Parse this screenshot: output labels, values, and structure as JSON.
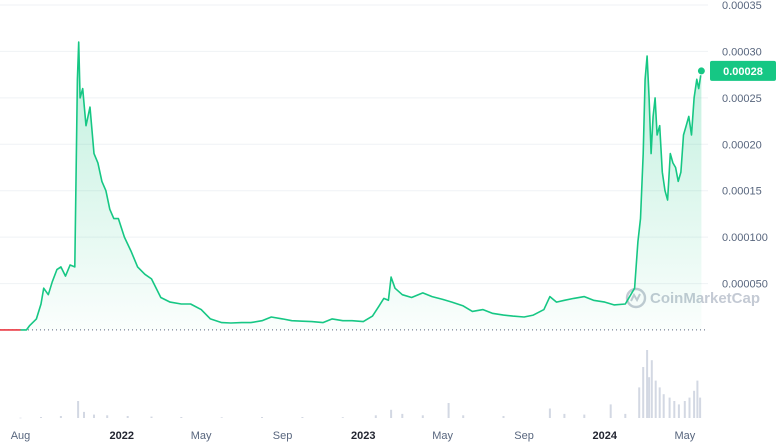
{
  "watermark": {
    "text": "CoinMarketCap",
    "icon": "coinmarketcap-logo-icon"
  },
  "current_price_label": "0.00028",
  "chart_data": {
    "type": "line",
    "title": "",
    "xlabel": "",
    "ylabel": "",
    "ylim": [
      0,
      0.00035
    ],
    "y_tick_labels": [
      "0.00035",
      "0.00030",
      "0.00025",
      "0.00020",
      "0.00015",
      "0.000100",
      "0.000050"
    ],
    "y_tick_values": [
      0.00035,
      0.0003,
      0.00025,
      0.0002,
      0.00015,
      0.0001,
      5e-05
    ],
    "x_tick_labels": [
      "Aug",
      "2022",
      "May",
      "Sep",
      "2023",
      "May",
      "Sep",
      "2024",
      "May"
    ],
    "x_tick_dates": [
      "2021-08-01",
      "2022-01-01",
      "2022-05-01",
      "2022-09-01",
      "2023-01-01",
      "2023-05-01",
      "2023-09-01",
      "2024-01-01",
      "2024-05-01"
    ],
    "x_tick_bold": [
      false,
      true,
      false,
      false,
      true,
      false,
      false,
      true,
      false
    ],
    "xlim": [
      "2021-07-01",
      "2024-06-05"
    ],
    "baseline_value": 1e-07,
    "colors": {
      "up": "#16c784",
      "down": "#ea3943",
      "volume": "#d3d8e3",
      "axis_text": "#58667e"
    },
    "series": [
      {
        "values": [
          [
            "2021-07-01",
            1e-07
          ],
          [
            "2021-07-15",
            1e-07
          ],
          [
            "2021-08-01",
            1e-07
          ],
          [
            "2021-08-10",
            1e-07
          ],
          [
            "2021-08-15",
            5e-06
          ],
          [
            "2021-08-25",
            1.2e-05
          ],
          [
            "2021-09-01",
            2.8e-05
          ],
          [
            "2021-09-05",
            4.5e-05
          ],
          [
            "2021-09-12",
            3.8e-05
          ],
          [
            "2021-09-18",
            5.2e-05
          ],
          [
            "2021-09-25",
            6.5e-05
          ],
          [
            "2021-10-01",
            6.8e-05
          ],
          [
            "2021-10-08",
            5.8e-05
          ],
          [
            "2021-10-15",
            7e-05
          ],
          [
            "2021-10-22",
            6.8e-05
          ],
          [
            "2021-10-26",
            0.00027
          ],
          [
            "2021-10-28",
            0.00031
          ],
          [
            "2021-10-30",
            0.00025
          ],
          [
            "2021-11-03",
            0.00026
          ],
          [
            "2021-11-08",
            0.00022
          ],
          [
            "2021-11-14",
            0.00024
          ],
          [
            "2021-11-20",
            0.00019
          ],
          [
            "2021-11-26",
            0.00018
          ],
          [
            "2021-12-02",
            0.00016
          ],
          [
            "2021-12-08",
            0.00015
          ],
          [
            "2021-12-14",
            0.00013
          ],
          [
            "2021-12-20",
            0.00012
          ],
          [
            "2021-12-27",
            0.00012
          ],
          [
            "2022-01-05",
            0.0001
          ],
          [
            "2022-01-15",
            8.5e-05
          ],
          [
            "2022-01-25",
            6.8e-05
          ],
          [
            "2022-02-05",
            6e-05
          ],
          [
            "2022-02-15",
            5.5e-05
          ],
          [
            "2022-03-01",
            3.5e-05
          ],
          [
            "2022-03-15",
            3e-05
          ],
          [
            "2022-04-01",
            2.8e-05
          ],
          [
            "2022-04-15",
            2.8e-05
          ],
          [
            "2022-05-01",
            2.2e-05
          ],
          [
            "2022-05-15",
            1.2e-05
          ],
          [
            "2022-06-01",
            8e-06
          ],
          [
            "2022-06-15",
            7.5e-06
          ],
          [
            "2022-07-01",
            8e-06
          ],
          [
            "2022-07-15",
            8e-06
          ],
          [
            "2022-08-01",
            1e-05
          ],
          [
            "2022-08-15",
            1.4e-05
          ],
          [
            "2022-09-01",
            1.2e-05
          ],
          [
            "2022-09-15",
            1e-05
          ],
          [
            "2022-10-01",
            9.5e-06
          ],
          [
            "2022-10-15",
            9e-06
          ],
          [
            "2022-11-01",
            8e-06
          ],
          [
            "2022-11-15",
            1.2e-05
          ],
          [
            "2022-12-01",
            1e-05
          ],
          [
            "2022-12-15",
            1e-05
          ],
          [
            "2023-01-01",
            9e-06
          ],
          [
            "2023-01-15",
            1.5e-05
          ],
          [
            "2023-01-25",
            2.6e-05
          ],
          [
            "2023-02-01",
            3.4e-05
          ],
          [
            "2023-02-08",
            3.2e-05
          ],
          [
            "2023-02-12",
            5.7e-05
          ],
          [
            "2023-02-18",
            4.5e-05
          ],
          [
            "2023-03-01",
            3.8e-05
          ],
          [
            "2023-03-15",
            3.5e-05
          ],
          [
            "2023-04-01",
            4e-05
          ],
          [
            "2023-04-15",
            3.6e-05
          ],
          [
            "2023-05-01",
            3.3e-05
          ],
          [
            "2023-05-15",
            3e-05
          ],
          [
            "2023-06-01",
            2.6e-05
          ],
          [
            "2023-06-15",
            2e-05
          ],
          [
            "2023-07-01",
            2.2e-05
          ],
          [
            "2023-07-15",
            1.8e-05
          ],
          [
            "2023-08-01",
            1.6e-05
          ],
          [
            "2023-08-15",
            1.5e-05
          ],
          [
            "2023-09-01",
            1.4e-05
          ],
          [
            "2023-09-15",
            1.6e-05
          ],
          [
            "2023-10-01",
            2.2e-05
          ],
          [
            "2023-10-10",
            3.6e-05
          ],
          [
            "2023-10-20",
            3e-05
          ],
          [
            "2023-11-01",
            3.2e-05
          ],
          [
            "2023-11-15",
            3.4e-05
          ],
          [
            "2023-12-01",
            3.6e-05
          ],
          [
            "2023-12-15",
            3.2e-05
          ],
          [
            "2024-01-01",
            3e-05
          ],
          [
            "2024-01-15",
            2.7e-05
          ],
          [
            "2024-02-01",
            2.8e-05
          ],
          [
            "2024-02-15",
            4.5e-05
          ],
          [
            "2024-02-20",
            9.5e-05
          ],
          [
            "2024-02-24",
            0.00012
          ],
          [
            "2024-02-28",
            0.00019
          ],
          [
            "2024-03-02",
            0.00027
          ],
          [
            "2024-03-05",
            0.000295
          ],
          [
            "2024-03-08",
            0.00025
          ],
          [
            "2024-03-11",
            0.00019
          ],
          [
            "2024-03-14",
            0.00023
          ],
          [
            "2024-03-17",
            0.00025
          ],
          [
            "2024-03-20",
            0.00021
          ],
          [
            "2024-03-24",
            0.00022
          ],
          [
            "2024-03-28",
            0.00017
          ],
          [
            "2024-04-01",
            0.00015
          ],
          [
            "2024-04-05",
            0.00014
          ],
          [
            "2024-04-09",
            0.00019
          ],
          [
            "2024-04-13",
            0.00018
          ],
          [
            "2024-04-17",
            0.000175
          ],
          [
            "2024-04-21",
            0.00016
          ],
          [
            "2024-04-25",
            0.00017
          ],
          [
            "2024-04-29",
            0.00021
          ],
          [
            "2024-05-03",
            0.00022
          ],
          [
            "2024-05-07",
            0.00023
          ],
          [
            "2024-05-11",
            0.00021
          ],
          [
            "2024-05-15",
            0.00025
          ],
          [
            "2024-05-19",
            0.00027
          ],
          [
            "2024-05-22",
            0.00026
          ],
          [
            "2024-05-26",
            0.000279
          ]
        ]
      }
    ],
    "volume": {
      "values": [
        [
          "2021-08-01",
          0.005
        ],
        [
          "2021-09-01",
          0.015
        ],
        [
          "2021-10-01",
          0.03
        ],
        [
          "2021-10-27",
          0.25
        ],
        [
          "2021-11-05",
          0.09
        ],
        [
          "2021-11-20",
          0.05
        ],
        [
          "2021-12-10",
          0.04
        ],
        [
          "2022-01-10",
          0.03
        ],
        [
          "2022-02-15",
          0.02
        ],
        [
          "2022-04-01",
          0.015
        ],
        [
          "2022-06-01",
          0.01
        ],
        [
          "2022-08-01",
          0.015
        ],
        [
          "2022-10-01",
          0.015
        ],
        [
          "2022-12-01",
          0.012
        ],
        [
          "2023-01-20",
          0.04
        ],
        [
          "2023-02-12",
          0.12
        ],
        [
          "2023-03-01",
          0.06
        ],
        [
          "2023-04-01",
          0.04
        ],
        [
          "2023-05-10",
          0.22
        ],
        [
          "2023-06-01",
          0.04
        ],
        [
          "2023-08-01",
          0.03
        ],
        [
          "2023-10-10",
          0.14
        ],
        [
          "2023-11-01",
          0.06
        ],
        [
          "2023-12-01",
          0.05
        ],
        [
          "2024-01-10",
          0.2
        ],
        [
          "2024-02-01",
          0.06
        ],
        [
          "2024-02-22",
          0.45
        ],
        [
          "2024-02-28",
          0.75
        ],
        [
          "2024-03-05",
          1.0
        ],
        [
          "2024-03-08",
          0.6
        ],
        [
          "2024-03-12",
          0.85
        ],
        [
          "2024-03-18",
          0.55
        ],
        [
          "2024-03-24",
          0.45
        ],
        [
          "2024-03-30",
          0.35
        ],
        [
          "2024-04-08",
          0.3
        ],
        [
          "2024-04-15",
          0.25
        ],
        [
          "2024-04-22",
          0.2
        ],
        [
          "2024-05-01",
          0.25
        ],
        [
          "2024-05-08",
          0.3
        ],
        [
          "2024-05-15",
          0.4
        ],
        [
          "2024-05-20",
          0.55
        ],
        [
          "2024-05-24",
          0.3
        ]
      ]
    }
  }
}
